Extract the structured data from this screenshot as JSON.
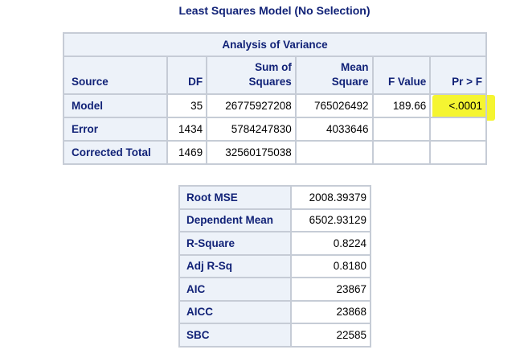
{
  "title": "Least Squares Model (No Selection)",
  "anova": {
    "caption": "Analysis of Variance",
    "columns": [
      "Source",
      "DF",
      "Sum of\nSquares",
      "Mean\nSquare",
      "F Value",
      "Pr > F"
    ],
    "col_source": "Source",
    "col_df": "DF",
    "col_ss_1": "Sum of",
    "col_ss_2": "Squares",
    "col_ms_1": "Mean",
    "col_ms_2": "Square",
    "col_f": "F Value",
    "col_p": "Pr > F",
    "rows": [
      {
        "source": "Model",
        "df": "35",
        "ss": "26775927208",
        "ms": "765026492",
        "f": "189.66",
        "p": "<.0001"
      },
      {
        "source": "Error",
        "df": "1434",
        "ss": "5784247830",
        "ms": "4033646",
        "f": "",
        "p": ""
      },
      {
        "source": "Corrected Total",
        "df": "1469",
        "ss": "32560175038",
        "ms": "",
        "f": "",
        "p": ""
      }
    ]
  },
  "fit": {
    "rows": [
      {
        "label": "Root MSE",
        "value": "2008.39379"
      },
      {
        "label": "Dependent Mean",
        "value": "6502.93129"
      },
      {
        "label": "R-Square",
        "value": "0.8224"
      },
      {
        "label": "Adj R-Sq",
        "value": "0.8180"
      },
      {
        "label": "AIC",
        "value": "23867"
      },
      {
        "label": "AICC",
        "value": "23868"
      },
      {
        "label": "SBC",
        "value": "22585"
      }
    ]
  },
  "colors": {
    "header_bg": "#edf2f9",
    "header_text": "#112277",
    "border": "#c6ccd6",
    "highlight": "#f5f531"
  }
}
